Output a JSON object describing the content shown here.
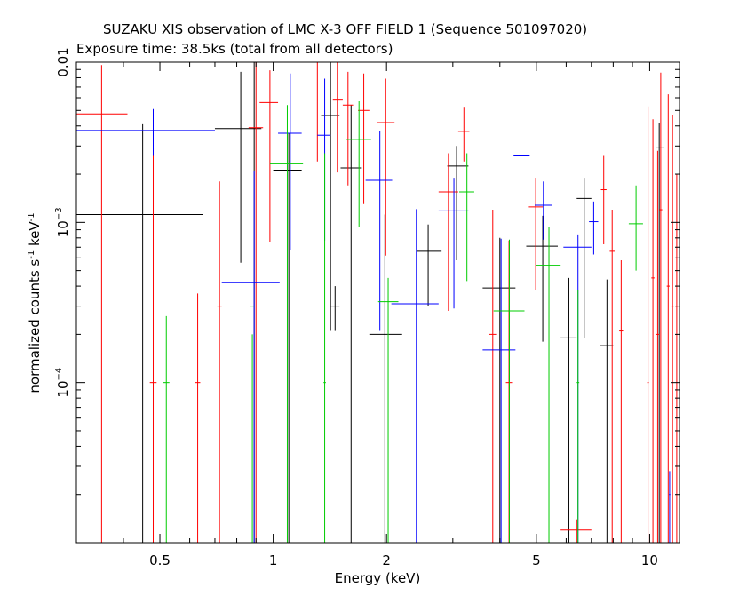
{
  "chart_data": {
    "type": "scatter",
    "title": "SUZAKU XIS observation of LMC X-3 OFF FIELD 1 (Sequence 501097020)",
    "subtitle": "Exposure time: 38.5ks (total from all detectors)",
    "xlabel": "Energy (keV)",
    "ylabel_main": "normalized counts s",
    "ylabel_exp1": "-1",
    "ylabel_mid": " keV",
    "ylabel_exp2": "-1",
    "xscale": "log",
    "yscale": "log",
    "xlim": [
      0.3,
      12
    ],
    "ylim": [
      1e-05,
      0.01
    ],
    "x_ticks": [
      {
        "value": 0.5,
        "label": "0.5"
      },
      {
        "value": 1,
        "label": "1"
      },
      {
        "value": 2,
        "label": "2"
      },
      {
        "value": 5,
        "label": "5"
      },
      {
        "value": 10,
        "label": "10"
      }
    ],
    "y_ticks": [
      {
        "value": 0.0001,
        "base": "10",
        "exp": "−4"
      },
      {
        "value": 0.001,
        "base": "10",
        "exp": "−3"
      },
      {
        "value": 0.01,
        "base": "0.01",
        "exp": ""
      }
    ],
    "series": [
      {
        "color": "#000000",
        "points": [
          {
            "x": 0.45,
            "xlo": 0.3,
            "xhi": 0.65,
            "y": 0.00112,
            "ylo": 1e-05,
            "yhi": 0.0041
          },
          {
            "x": 0.82,
            "xlo": 0.7,
            "xhi": 0.93,
            "y": 0.00385,
            "ylo": 0.00056,
            "yhi": 0.0087
          },
          {
            "x": 0.89,
            "xlo": 0.87,
            "xhi": 0.93,
            "y": 0.01,
            "ylo": 1e-05,
            "yhi": 0.01
          },
          {
            "x": 1.1,
            "xlo": 1.0,
            "xhi": 1.19,
            "y": 0.00212,
            "ylo": 1e-05,
            "yhi": 0.00362
          },
          {
            "x": 1.42,
            "xlo": 1.34,
            "xhi": 1.5,
            "y": 0.00465,
            "ylo": 0.00021,
            "yhi": 0.01
          },
          {
            "x": 1.46,
            "xlo": 1.42,
            "xhi": 1.5,
            "y": 0.0003,
            "ylo": 0.00021,
            "yhi": 0.0004
          },
          {
            "x": 1.61,
            "xlo": 1.51,
            "xhi": 1.71,
            "y": 0.00219,
            "ylo": 1e-05,
            "yhi": 0.0054
          },
          {
            "x": 1.98,
            "xlo": 1.8,
            "xhi": 2.2,
            "y": 0.0002,
            "ylo": 1e-05,
            "yhi": 0.00112
          },
          {
            "x": 2.58,
            "xlo": 2.4,
            "xhi": 2.8,
            "y": 0.00066,
            "ylo": 0.0003,
            "yhi": 0.00097
          },
          {
            "x": 3.07,
            "xlo": 2.9,
            "xhi": 3.3,
            "y": 0.00225,
            "ylo": 0.00058,
            "yhi": 0.003
          },
          {
            "x": 4.0,
            "xlo": 3.6,
            "xhi": 4.4,
            "y": 0.00039,
            "ylo": 1e-05,
            "yhi": 0.0008
          },
          {
            "x": 5.2,
            "xlo": 4.7,
            "xhi": 5.7,
            "y": 0.00071,
            "ylo": 0.00018,
            "yhi": 0.0011
          },
          {
            "x": 6.1,
            "xlo": 5.8,
            "xhi": 6.4,
            "y": 0.00019,
            "ylo": 1e-05,
            "yhi": 0.00045
          },
          {
            "x": 6.7,
            "xlo": 6.4,
            "xhi": 7.0,
            "y": 0.00141,
            "ylo": 0.00019,
            "yhi": 0.0019
          },
          {
            "x": 7.7,
            "xlo": 7.4,
            "xhi": 8.0,
            "y": 0.00017,
            "ylo": 1e-05,
            "yhi": 0.00044
          },
          {
            "x": 10.6,
            "xlo": 10.4,
            "xhi": 10.9,
            "y": 0.00295,
            "ylo": 1e-05,
            "yhi": 0.00415
          }
        ]
      },
      {
        "color": "#ff0000",
        "points": [
          {
            "x": 0.35,
            "xlo": 0.3,
            "xhi": 0.41,
            "y": 0.00475,
            "ylo": 1e-05,
            "yhi": 0.0096
          },
          {
            "x": 0.48,
            "xlo": 0.47,
            "xhi": 0.49,
            "y": 0.0001,
            "ylo": 1e-05,
            "yhi": 0.0029
          },
          {
            "x": 0.63,
            "xlo": 0.62,
            "xhi": 0.64,
            "y": 0.0001,
            "ylo": 1e-05,
            "yhi": 0.00036
          },
          {
            "x": 0.72,
            "xlo": 0.71,
            "xhi": 0.73,
            "y": 0.0003,
            "ylo": 1e-05,
            "yhi": 0.0018
          },
          {
            "x": 0.9,
            "xlo": 0.86,
            "xhi": 0.94,
            "y": 0.0039,
            "ylo": 1e-05,
            "yhi": 0.01
          },
          {
            "x": 0.98,
            "xlo": 0.92,
            "xhi": 1.03,
            "y": 0.0056,
            "ylo": 0.00075,
            "yhi": 0.0089
          },
          {
            "x": 1.31,
            "xlo": 1.23,
            "xhi": 1.4,
            "y": 0.0066,
            "ylo": 0.0024,
            "yhi": 0.01
          },
          {
            "x": 1.48,
            "xlo": 1.44,
            "xhi": 1.53,
            "y": 0.0058,
            "ylo": 0.00205,
            "yhi": 0.01
          },
          {
            "x": 1.58,
            "xlo": 1.53,
            "xhi": 1.63,
            "y": 0.0054,
            "ylo": 0.0017,
            "yhi": 0.0087
          },
          {
            "x": 1.74,
            "xlo": 1.68,
            "xhi": 1.8,
            "y": 0.005,
            "ylo": 0.0013,
            "yhi": 0.0085
          },
          {
            "x": 1.99,
            "xlo": 1.89,
            "xhi": 2.1,
            "y": 0.0042,
            "ylo": 0.00062,
            "yhi": 0.0079
          },
          {
            "x": 2.92,
            "xlo": 2.75,
            "xhi": 3.1,
            "y": 0.00155,
            "ylo": 0.00028,
            "yhi": 0.0027
          },
          {
            "x": 3.21,
            "xlo": 3.1,
            "xhi": 3.32,
            "y": 0.0037,
            "ylo": 0.0024,
            "yhi": 0.0052
          },
          {
            "x": 3.83,
            "xlo": 3.75,
            "xhi": 3.91,
            "y": 0.0002,
            "ylo": 1e-05,
            "yhi": 0.0012
          },
          {
            "x": 4.23,
            "xlo": 4.15,
            "xhi": 4.31,
            "y": 0.0001,
            "ylo": 1e-05,
            "yhi": 0.00077
          },
          {
            "x": 4.98,
            "xlo": 4.75,
            "xhi": 5.2,
            "y": 0.00125,
            "ylo": 0.00038,
            "yhi": 0.0019
          },
          {
            "x": 6.4,
            "xlo": 5.8,
            "xhi": 7.0,
            "y": 1.2e-05,
            "ylo": 1e-05,
            "yhi": 1.4e-05
          },
          {
            "x": 7.55,
            "xlo": 7.42,
            "xhi": 7.68,
            "y": 0.0016,
            "ylo": 0.00073,
            "yhi": 0.0026
          },
          {
            "x": 7.95,
            "xlo": 7.83,
            "xhi": 8.07,
            "y": 0.00066,
            "ylo": 1e-05,
            "yhi": 0.0012
          },
          {
            "x": 8.4,
            "xlo": 8.3,
            "xhi": 8.5,
            "y": 0.00021,
            "ylo": 1e-05,
            "yhi": 0.00058
          },
          {
            "x": 9.9,
            "xlo": 9.85,
            "xhi": 9.95,
            "y": 0.0001,
            "ylo": 1e-05,
            "yhi": 0.0053
          },
          {
            "x": 10.2,
            "xlo": 10.1,
            "xhi": 10.3,
            "y": 0.00045,
            "ylo": 1e-05,
            "yhi": 0.0044
          },
          {
            "x": 10.5,
            "xlo": 10.4,
            "xhi": 10.6,
            "y": 0.0002,
            "ylo": 1e-05,
            "yhi": 0.0028
          },
          {
            "x": 10.7,
            "xlo": 10.6,
            "xhi": 10.8,
            "y": 0.0012,
            "ylo": 1e-05,
            "yhi": 0.0086
          },
          {
            "x": 11.2,
            "xlo": 11.1,
            "xhi": 11.3,
            "y": 0.0004,
            "ylo": 1e-05,
            "yhi": 0.0063
          },
          {
            "x": 11.5,
            "xlo": 11.4,
            "xhi": 11.6,
            "y": 0.0003,
            "ylo": 1e-05,
            "yhi": 0.0047
          },
          {
            "x": 11.8,
            "xlo": 11.7,
            "xhi": 11.9,
            "y": 0.0003,
            "ylo": 1e-05,
            "yhi": 0.002
          }
        ]
      },
      {
        "color": "#0000ff",
        "points": [
          {
            "x": 0.48,
            "xlo": 0.3,
            "xhi": 0.7,
            "y": 0.00375,
            "ylo": 0.0026,
            "yhi": 0.0051
          },
          {
            "x": 0.89,
            "xlo": 0.73,
            "xhi": 1.04,
            "y": 0.00042,
            "ylo": 1e-05,
            "yhi": 0.0021
          },
          {
            "x": 1.11,
            "xlo": 1.03,
            "xhi": 1.19,
            "y": 0.0036,
            "ylo": 0.00067,
            "yhi": 0.0085
          },
          {
            "x": 1.37,
            "xlo": 1.31,
            "xhi": 1.42,
            "y": 0.0035,
            "ylo": 0.00077,
            "yhi": 0.0079
          },
          {
            "x": 1.92,
            "xlo": 1.76,
            "xhi": 2.07,
            "y": 0.00183,
            "ylo": 0.00021,
            "yhi": 0.0037
          },
          {
            "x": 2.4,
            "xlo": 2.06,
            "xhi": 2.75,
            "y": 0.00031,
            "ylo": 1e-05,
            "yhi": 0.00121
          },
          {
            "x": 3.02,
            "xlo": 2.75,
            "xhi": 3.3,
            "y": 0.00118,
            "ylo": 0.00029,
            "yhi": 0.0019
          },
          {
            "x": 4.03,
            "xlo": 3.6,
            "xhi": 4.4,
            "y": 0.00016,
            "ylo": 1e-05,
            "yhi": 0.00079
          },
          {
            "x": 4.55,
            "xlo": 4.35,
            "xhi": 4.8,
            "y": 0.0026,
            "ylo": 0.00185,
            "yhi": 0.0036
          },
          {
            "x": 5.22,
            "xlo": 4.95,
            "xhi": 5.5,
            "y": 0.00128,
            "ylo": 0.00078,
            "yhi": 0.0018
          },
          {
            "x": 6.45,
            "xlo": 5.9,
            "xhi": 7.0,
            "y": 0.0007,
            "ylo": 1e-05,
            "yhi": 0.00083
          },
          {
            "x": 7.1,
            "xlo": 6.9,
            "xhi": 7.3,
            "y": 0.00101,
            "ylo": 0.00063,
            "yhi": 0.00135
          },
          {
            "x": 11.3,
            "xlo": 11.25,
            "xhi": 11.35,
            "y": 2e-05,
            "ylo": 1e-05,
            "yhi": 2.8e-05
          }
        ]
      },
      {
        "color": "#00cc00",
        "points": [
          {
            "x": 0.52,
            "xlo": 0.51,
            "xhi": 0.53,
            "y": 0.0001,
            "ylo": 1e-05,
            "yhi": 0.00026
          },
          {
            "x": 0.88,
            "xlo": 0.87,
            "xhi": 0.89,
            "y": 0.0003,
            "ylo": 1e-05,
            "yhi": 0.0002
          },
          {
            "x": 1.09,
            "xlo": 0.98,
            "xhi": 1.2,
            "y": 0.00232,
            "ylo": 1e-05,
            "yhi": 0.0054
          },
          {
            "x": 1.37,
            "xlo": 1.36,
            "xhi": 1.38,
            "y": 0.0001,
            "ylo": 1e-05,
            "yhi": 0.0027
          },
          {
            "x": 1.69,
            "xlo": 1.56,
            "xhi": 1.82,
            "y": 0.0033,
            "ylo": 0.00093,
            "yhi": 0.0057
          },
          {
            "x": 2.02,
            "xlo": 1.9,
            "xhi": 2.15,
            "y": 0.00032,
            "ylo": 1e-05,
            "yhi": 0.00045
          },
          {
            "x": 3.27,
            "xlo": 3.12,
            "xhi": 3.42,
            "y": 0.00155,
            "ylo": 0.00043,
            "yhi": 0.0027
          },
          {
            "x": 4.24,
            "xlo": 3.85,
            "xhi": 4.65,
            "y": 0.00028,
            "ylo": 1e-05,
            "yhi": 0.00078
          },
          {
            "x": 5.4,
            "xlo": 5.0,
            "xhi": 5.8,
            "y": 0.00054,
            "ylo": 1e-05,
            "yhi": 0.00093
          },
          {
            "x": 6.45,
            "xlo": 6.4,
            "xhi": 6.5,
            "y": 0.0001,
            "ylo": 1e-05,
            "yhi": 0.00038
          },
          {
            "x": 9.2,
            "xlo": 8.8,
            "xhi": 9.6,
            "y": 0.00098,
            "ylo": 0.0005,
            "yhi": 0.0017
          }
        ]
      }
    ]
  }
}
